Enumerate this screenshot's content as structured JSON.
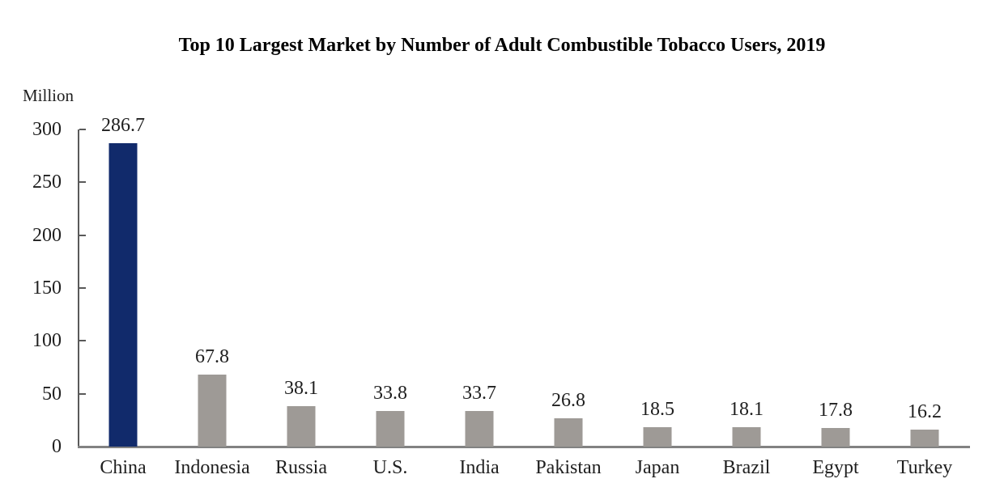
{
  "chart_data": {
    "type": "bar",
    "title": "Top 10 Largest Market by Number of Adult Combustible Tobacco Users, 2019",
    "unit_label": "Million",
    "categories": [
      "China",
      "Indonesia",
      "Russia",
      "U.S.",
      "India",
      "Pakistan",
      "Japan",
      "Brazil",
      "Egypt",
      "Turkey"
    ],
    "values": [
      286.7,
      67.8,
      38.1,
      33.8,
      33.7,
      26.8,
      18.5,
      18.1,
      17.8,
      16.2
    ],
    "value_labels": [
      "286.7",
      "67.8",
      "38.1",
      "33.8",
      "33.7",
      "26.8",
      "18.5",
      "18.1",
      "17.8",
      "16.2"
    ],
    "highlight_category": "China",
    "ylim": [
      0,
      300
    ],
    "yticks": [
      0,
      50,
      100,
      150,
      200,
      250,
      300
    ],
    "grid": false,
    "legend": null,
    "colors": {
      "highlight_bar": "#112a6b",
      "default_bar": "#9e9a96",
      "axis": "#595959",
      "baseline": "#828282",
      "text": "#1f1f1f",
      "title_text": "#000000"
    }
  }
}
